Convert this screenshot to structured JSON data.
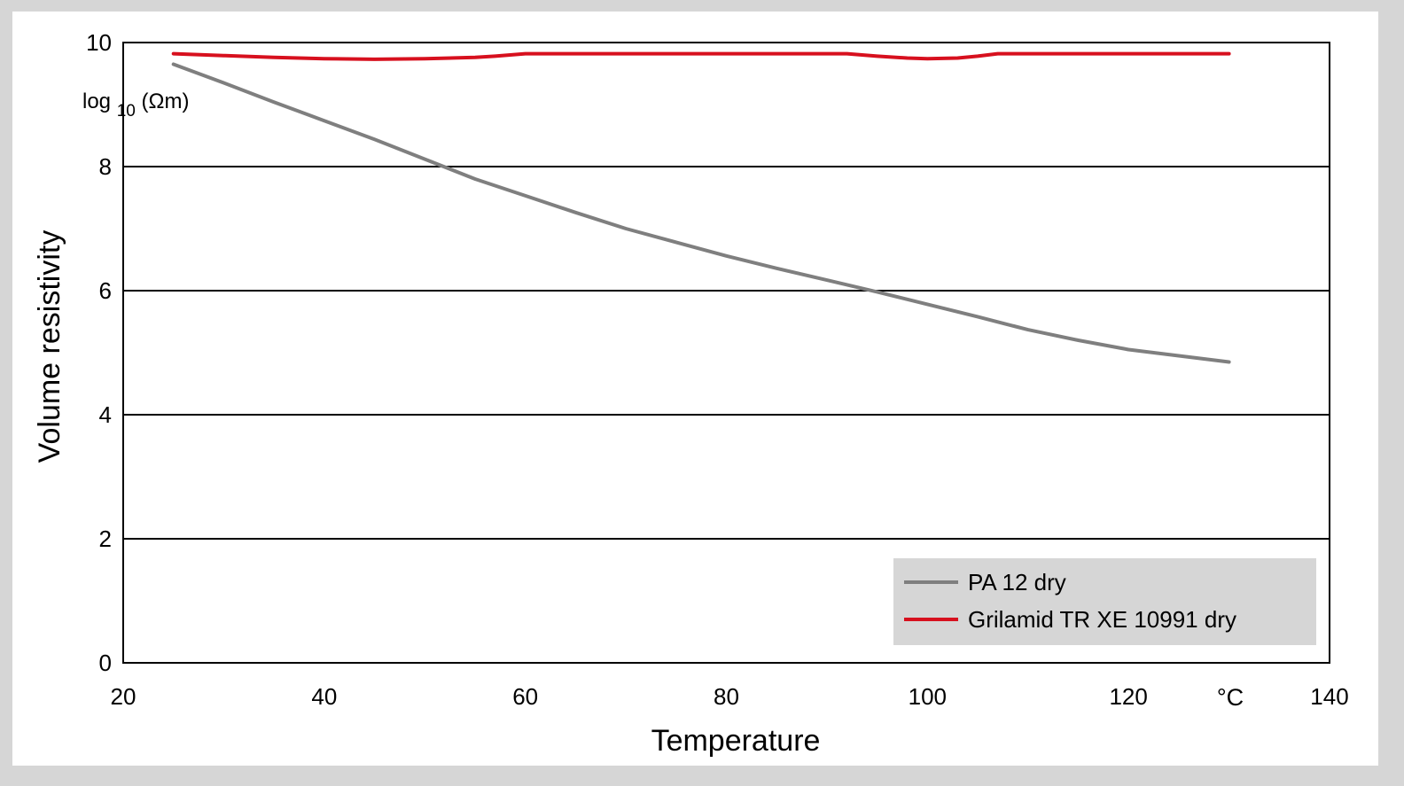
{
  "chart_data": {
    "type": "line",
    "xlabel": "Temperature",
    "x_unit": "°C",
    "ylabel": "Volume resistivity",
    "y_unit_base": "log",
    "y_unit_sub": "10",
    "y_unit_rest": "(Ωm)",
    "xlim": [
      20,
      140
    ],
    "ylim": [
      0,
      10
    ],
    "x_ticks": [
      20,
      40,
      60,
      80,
      100,
      120,
      140
    ],
    "y_ticks": [
      0,
      2,
      4,
      6,
      8,
      10
    ],
    "grid": "horizontal",
    "legend_position": "bottom-right",
    "series": [
      {
        "name": "PA 12 dry",
        "color": "#7f7f7f",
        "x": [
          25,
          30,
          35,
          40,
          45,
          50,
          55,
          60,
          65,
          70,
          75,
          80,
          85,
          90,
          95,
          100,
          105,
          110,
          115,
          120,
          125,
          130
        ],
        "y": [
          9.65,
          9.35,
          9.04,
          8.74,
          8.44,
          8.12,
          7.8,
          7.53,
          7.26,
          7.0,
          6.78,
          6.56,
          6.36,
          6.17,
          5.98,
          5.78,
          5.58,
          5.37,
          5.2,
          5.05,
          4.95,
          4.85
        ]
      },
      {
        "name": "Grilamid TR XE 10991 dry",
        "color": "#d7101e",
        "x": [
          25,
          30,
          35,
          40,
          45,
          50,
          55,
          57,
          60,
          65,
          70,
          75,
          80,
          85,
          90,
          92,
          95,
          98,
          100,
          103,
          105,
          107,
          110,
          115,
          120,
          125,
          130
        ],
        "y": [
          9.82,
          9.79,
          9.76,
          9.74,
          9.73,
          9.74,
          9.76,
          9.78,
          9.82,
          9.82,
          9.82,
          9.82,
          9.82,
          9.82,
          9.82,
          9.82,
          9.78,
          9.75,
          9.74,
          9.75,
          9.78,
          9.82,
          9.82,
          9.82,
          9.82,
          9.82,
          9.82
        ]
      }
    ]
  }
}
